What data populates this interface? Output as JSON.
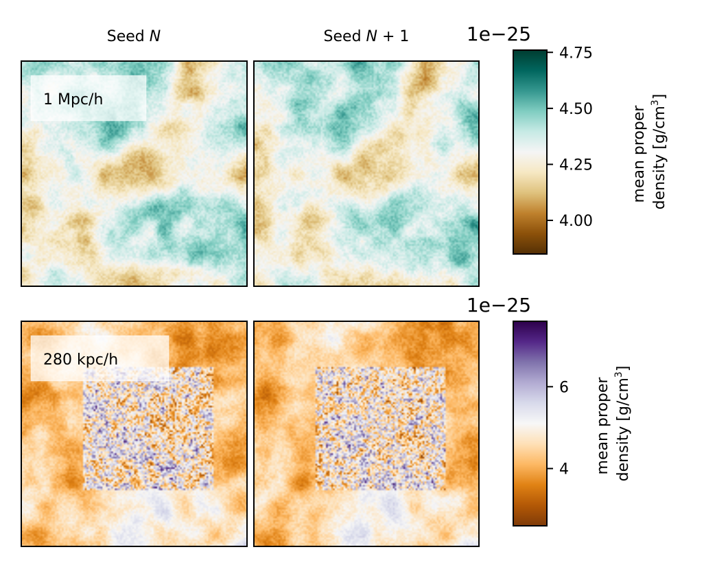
{
  "chart_data": {
    "type": "heatmap",
    "columns": [
      "Seed N",
      "Seed N + 1"
    ],
    "column_titles": [
      {
        "prefix": "Seed ",
        "symbol": "N",
        "suffix": ""
      },
      {
        "prefix": "Seed ",
        "symbol": "N",
        "suffix": " + 1"
      }
    ],
    "rows": [
      {
        "label": "1 Mpc/h",
        "colormap": "BrBG",
        "colors": [
          "#543005",
          "#8c510a",
          "#bf812d",
          "#dfc27d",
          "#f6e8c3",
          "#f5f5f5",
          "#c7eae5",
          "#80cdc1",
          "#35978f",
          "#01665e",
          "#003c30"
        ],
        "colorbar": {
          "vmin": 3.85,
          "vmax": 4.76,
          "ticks": [
            4.0,
            4.25,
            4.5,
            4.75
          ],
          "tick_labels": [
            "4.00",
            "4.25",
            "4.50",
            "4.75"
          ],
          "offset_text": "1e−25",
          "label_line1": "mean proper",
          "label_line2": "density [g/cm",
          "label_sup": "3",
          "label_close": "]"
        },
        "field_mean": 4.33,
        "field_amplitude": 0.24,
        "zoom_box": null
      },
      {
        "label": "280 kpc/h",
        "colormap": "PuOr",
        "colors": [
          "#7f3b08",
          "#b35806",
          "#e08214",
          "#fdb863",
          "#fee0b6",
          "#f7f7f7",
          "#d8daeb",
          "#b2abd2",
          "#8073ac",
          "#542788",
          "#2d004b"
        ],
        "colorbar": {
          "vmin": 2.6,
          "vmax": 7.6,
          "ticks": [
            4,
            6
          ],
          "tick_labels": [
            "4",
            "6"
          ],
          "offset_text": "1e−25",
          "label_line1": "mean proper",
          "label_line2": "density [g/cm",
          "label_sup": "3",
          "label_close": "]"
        },
        "field_mean": 4.6,
        "field_amplitude": 1.1,
        "zoom_box": {
          "fraction": [
            0.27,
            0.2,
            0.85,
            0.75
          ],
          "mean": 5.1,
          "amplitude": 1.6
        }
      }
    ]
  }
}
